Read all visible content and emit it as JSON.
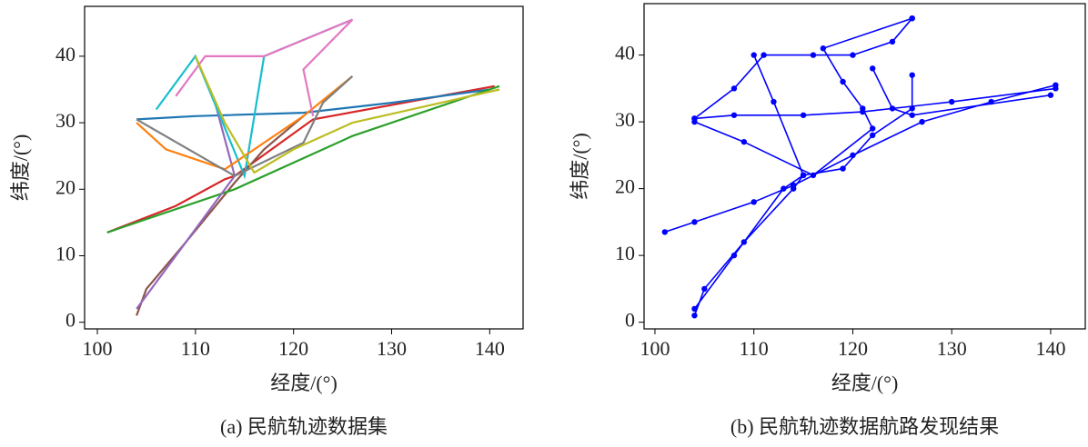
{
  "chart_data": [
    {
      "type": "line",
      "caption": "(a) 民航轨迹数据集",
      "xlabel": "经度/(°)",
      "ylabel": "纬度/(°)",
      "xlim": [
        98.7,
        143.4
      ],
      "ylim": [
        -1,
        47.5
      ],
      "xticks": [
        100,
        110,
        120,
        130,
        140
      ],
      "yticks": [
        0,
        10,
        20,
        30,
        40
      ],
      "markers": false,
      "series": [
        {
          "color": "#d62728",
          "x": [
            101,
            108,
            113,
            114,
            122,
            140.5
          ],
          "values": [
            13.5,
            17.5,
            21.5,
            22,
            30.5,
            35.5
          ]
        },
        {
          "color": "#8c564b",
          "x": [
            104,
            105,
            109,
            114,
            117,
            121
          ],
          "values": [
            1,
            5,
            12,
            21,
            26,
            31
          ]
        },
        {
          "color": "#1f77b4",
          "x": [
            104,
            110,
            121,
            130,
            140
          ],
          "values": [
            30.5,
            31,
            31.5,
            33,
            35
          ]
        },
        {
          "color": "#2ca02c",
          "x": [
            101,
            108,
            114,
            126,
            141
          ],
          "values": [
            13.5,
            17,
            20,
            28,
            35.5
          ]
        },
        {
          "color": "#9467bd",
          "x": [
            110,
            112,
            114,
            109,
            104
          ],
          "values": [
            40,
            33,
            22,
            12,
            2
          ]
        },
        {
          "color": "#17becf",
          "x": [
            126,
            117,
            115,
            110,
            106
          ],
          "values": [
            45.5,
            40,
            22,
            40,
            32
          ]
        },
        {
          "color": "#ff7f0e",
          "x": [
            104,
            107,
            113,
            121,
            126
          ],
          "values": [
            30,
            26,
            23,
            31,
            37
          ]
        },
        {
          "color": "#e377c2",
          "x": [
            108,
            111,
            117,
            126,
            121,
            122
          ],
          "values": [
            34,
            40,
            40,
            45.5,
            38,
            31
          ]
        },
        {
          "color": "#7f7f7f",
          "x": [
            126,
            123,
            121,
            114,
            104
          ],
          "values": [
            37,
            33,
            27,
            22,
            30.5
          ]
        },
        {
          "color": "#bcbd22",
          "x": [
            110,
            113,
            116,
            120,
            126,
            141
          ],
          "values": [
            40,
            30,
            22.5,
            26,
            30,
            35
          ]
        }
      ]
    },
    {
      "type": "line",
      "caption": "(b) 民航轨迹数据航路发现结果",
      "xlabel": "经度/(°)",
      "ylabel": "纬度/(°)",
      "xlim": [
        98.9,
        143.5
      ],
      "ylim": [
        -1,
        47.7
      ],
      "xticks": [
        100,
        110,
        120,
        130,
        140
      ],
      "yticks": [
        0,
        10,
        20,
        30,
        40
      ],
      "markers": true,
      "series": [
        {
          "color": "#0000ff",
          "x": [
            104,
            105,
            109,
            114,
            115,
            119,
            122,
            126,
            126
          ],
          "values": [
            1,
            5,
            12,
            20,
            22,
            23,
            28,
            32,
            37
          ]
        },
        {
          "color": "#0000ff",
          "x": [
            101,
            104,
            110,
            114,
            120,
            127,
            134,
            140.5
          ],
          "values": [
            13.5,
            15,
            18,
            20.5,
            25,
            30,
            33,
            35.5
          ]
        },
        {
          "color": "#0000ff",
          "x": [
            104,
            108,
            115,
            121,
            130,
            140.5
          ],
          "values": [
            30.5,
            31,
            31,
            31.5,
            33,
            35
          ]
        },
        {
          "color": "#0000ff",
          "x": [
            126,
            124,
            120,
            116,
            111,
            108,
            104
          ],
          "values": [
            45.5,
            42,
            40,
            40,
            40,
            35,
            30.5
          ]
        },
        {
          "color": "#0000ff",
          "x": [
            126,
            117,
            119,
            121,
            122,
            116,
            109,
            104
          ],
          "values": [
            45.5,
            41,
            36,
            32,
            29,
            22,
            27,
            30
          ]
        },
        {
          "color": "#0000ff",
          "x": [
            104,
            108,
            113,
            115
          ],
          "values": [
            2,
            10,
            20,
            22
          ]
        },
        {
          "color": "#0000ff",
          "x": [
            122,
            124,
            126,
            140
          ],
          "values": [
            38,
            32,
            31,
            34
          ]
        },
        {
          "color": "#0000ff",
          "x": [
            110,
            112,
            115
          ],
          "values": [
            40,
            33,
            22
          ]
        }
      ]
    }
  ]
}
